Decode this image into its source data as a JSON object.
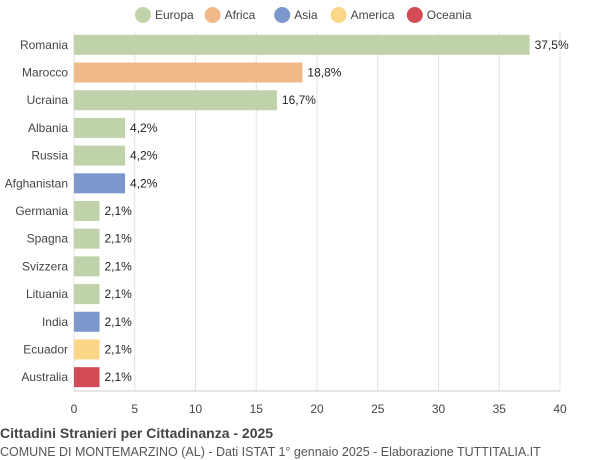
{
  "chart_data": {
    "type": "bar",
    "orientation": "horizontal",
    "legend_position": "top-center",
    "grid": true,
    "xlim": [
      0,
      40
    ],
    "xticks": [
      0,
      5,
      10,
      15,
      20,
      25,
      30,
      35,
      40
    ],
    "legend": [
      {
        "name": "Europa",
        "color": "#c0d2aa"
      },
      {
        "name": "Africa",
        "color": "#f0b98a"
      },
      {
        "name": "Asia",
        "color": "#7b97cc"
      },
      {
        "name": "America",
        "color": "#fcd687"
      },
      {
        "name": "Oceania",
        "color": "#d34b55"
      }
    ],
    "categories": [
      "Romania",
      "Marocco",
      "Ucraina",
      "Albania",
      "Russia",
      "Afghanistan",
      "Germania",
      "Spagna",
      "Svizzera",
      "Lituania",
      "India",
      "Ecuador",
      "Australia"
    ],
    "values": [
      37.5,
      18.8,
      16.7,
      4.2,
      4.2,
      4.2,
      2.1,
      2.1,
      2.1,
      2.1,
      2.1,
      2.1,
      2.1
    ],
    "value_labels": [
      "37,5%",
      "18,8%",
      "16,7%",
      "4,2%",
      "4,2%",
      "4,2%",
      "2,1%",
      "2,1%",
      "2,1%",
      "2,1%",
      "2,1%",
      "2,1%",
      "2,1%"
    ],
    "groups": [
      "Europa",
      "Africa",
      "Europa",
      "Europa",
      "Europa",
      "Asia",
      "Europa",
      "Europa",
      "Europa",
      "Europa",
      "Asia",
      "America",
      "Oceania"
    ]
  },
  "footer": {
    "title": "Cittadini Stranieri per Cittadinanza - 2025",
    "subtitle": "COMUNE DI MONTEMARZINO (AL) - Dati ISTAT 1° gennaio 2025 - Elaborazione TUTTITALIA.IT"
  }
}
